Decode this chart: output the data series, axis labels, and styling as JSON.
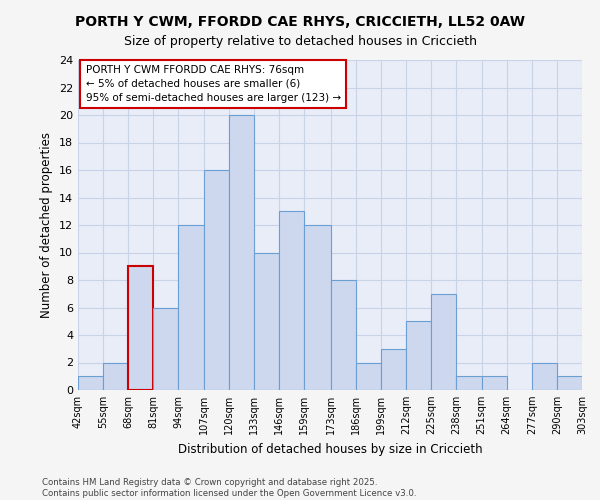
{
  "title_line1": "PORTH Y CWM, FFORDD CAE RHYS, CRICCIETH, LL52 0AW",
  "title_line2": "Size of property relative to detached houses in Criccieth",
  "xlabel": "Distribution of detached houses by size in Criccieth",
  "ylabel": "Number of detached properties",
  "bin_edges": [
    42,
    55,
    68,
    81,
    94,
    107,
    120,
    133,
    146,
    159,
    173,
    186,
    199,
    212,
    225,
    238,
    251,
    264,
    277,
    290,
    303
  ],
  "counts": [
    1,
    2,
    9,
    6,
    12,
    16,
    20,
    10,
    13,
    12,
    8,
    2,
    3,
    5,
    7,
    1,
    1,
    0,
    2,
    1
  ],
  "bar_facecolor": "#cdd8ef",
  "bar_edgecolor": "#6b9fd4",
  "highlight_bin_index": 2,
  "highlight_edgecolor": "#cc0000",
  "annotation_text": "PORTH Y CWM FFORDD CAE RHYS: 76sqm\n← 5% of detached houses are smaller (6)\n95% of semi-detached houses are larger (123) →",
  "annotation_box_edgecolor": "#cc0000",
  "annotation_box_facecolor": "#ffffff",
  "ylim": [
    0,
    24
  ],
  "yticks": [
    0,
    2,
    4,
    6,
    8,
    10,
    12,
    14,
    16,
    18,
    20,
    22,
    24
  ],
  "grid_color": "#c8d3e8",
  "plot_bg_color": "#e8edf8",
  "fig_bg_color": "#f5f5f5",
  "footer_text": "Contains HM Land Registry data © Crown copyright and database right 2025.\nContains public sector information licensed under the Open Government Licence v3.0.",
  "tick_labels": [
    "42sqm",
    "55sqm",
    "68sqm",
    "81sqm",
    "94sqm",
    "107sqm",
    "120sqm",
    "133sqm",
    "146sqm",
    "159sqm",
    "173sqm",
    "186sqm",
    "199sqm",
    "212sqm",
    "225sqm",
    "238sqm",
    "251sqm",
    "264sqm",
    "277sqm",
    "290sqm",
    "303sqm"
  ]
}
